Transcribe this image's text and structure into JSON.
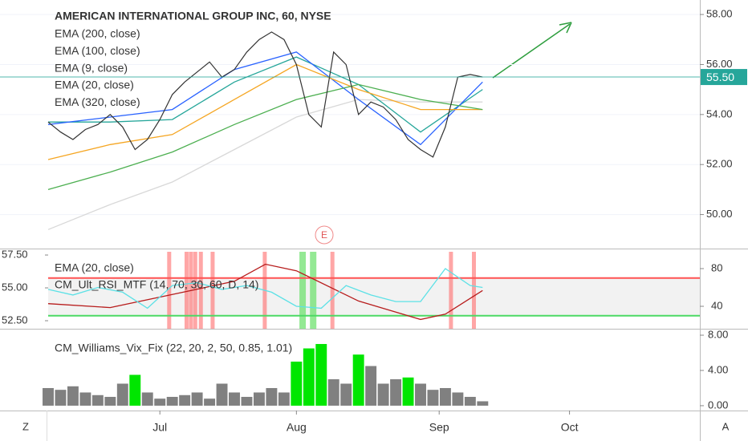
{
  "chart_data": [
    {
      "type": "line",
      "title": "AMERICAN INTERNATIONAL GROUP INC, 60, NYSE",
      "xlim": [
        0,
        105
      ],
      "ylim": [
        48.64,
        58.58
      ],
      "yticks": [
        {
          "value": 50,
          "label": "50.00"
        },
        {
          "value": 52,
          "label": "52.00"
        },
        {
          "value": 54,
          "label": "54.00"
        },
        {
          "value": 56,
          "label": "56.00"
        },
        {
          "value": 58,
          "label": "58.00"
        }
      ],
      "grid": true,
      "x": [
        0,
        2,
        4,
        6,
        8,
        10,
        12,
        14,
        16,
        18,
        20,
        22,
        24,
        26,
        28,
        30,
        32,
        34,
        36,
        38,
        40,
        42,
        44,
        46,
        48,
        50,
        52,
        54,
        56,
        58,
        60,
        62,
        64,
        66,
        68,
        70
      ],
      "values": [
        53.7,
        53.3,
        53.0,
        53.4,
        53.6,
        54.0,
        53.5,
        52.6,
        53.0,
        53.8,
        54.8,
        55.3,
        55.7,
        56.1,
        55.5,
        55.8,
        56.5,
        57.0,
        57.3,
        57.0,
        56.0,
        54.0,
        53.5,
        56.5,
        56.0,
        54.0,
        54.5,
        54.3,
        53.8,
        53.0,
        52.6,
        52.3,
        53.5,
        55.5,
        55.6,
        55.5
      ],
      "color": "#333333",
      "last_price": {
        "value": 55.5,
        "label": "55.50",
        "color": "#26a69a"
      },
      "series": [
        {
          "name": "EMA (200, close)",
          "color": "#4caf50",
          "x": [
            0,
            10,
            20,
            30,
            40,
            50,
            60,
            70
          ],
          "values": [
            51.0,
            51.7,
            52.5,
            53.6,
            54.6,
            55.2,
            54.6,
            54.2
          ]
        },
        {
          "name": "EMA (100, close)",
          "color": "#f5a623",
          "x": [
            0,
            10,
            20,
            30,
            40,
            50,
            60,
            70
          ],
          "values": [
            52.2,
            52.8,
            53.2,
            54.6,
            56.0,
            55.0,
            54.2,
            54.2
          ]
        },
        {
          "name": "EMA (9, close)",
          "color": "#2962ff",
          "x": [
            0,
            10,
            20,
            30,
            40,
            50,
            60,
            70
          ],
          "values": [
            53.6,
            53.9,
            54.2,
            55.8,
            56.5,
            54.6,
            52.8,
            55.3
          ]
        },
        {
          "name": "EMA (20, close)",
          "color": "#26a69a",
          "x": [
            0,
            10,
            20,
            30,
            40,
            50,
            60,
            70
          ],
          "values": [
            53.7,
            53.7,
            53.8,
            55.3,
            56.3,
            55.2,
            53.3,
            55.0
          ]
        },
        {
          "name": "EMA (320, close)",
          "color": "#d8d8d8",
          "x": [
            0,
            10,
            20,
            30,
            40,
            50,
            60,
            70
          ],
          "values": [
            49.4,
            50.4,
            51.3,
            52.6,
            53.9,
            54.6,
            54.5,
            54.5
          ]
        }
      ],
      "event_label": "E"
    },
    {
      "type": "line",
      "xlim": [
        0,
        105
      ],
      "ylim": [
        16.2,
        100.4
      ],
      "yticks": [
        40,
        80
      ],
      "y2lim": [
        51.89,
        57.93
      ],
      "y2ticks": [
        {
          "value": 52.5,
          "label": "52.50"
        },
        {
          "value": 55,
          "label": "55.00"
        },
        {
          "value": 57.5,
          "label": "57.50"
        }
      ],
      "upper": 70,
      "lower": 30,
      "upper_color": "#ff5252",
      "lower_color": "#4cd964",
      "series": [
        {
          "name": "EMA (20, close)",
          "color": "#b71c1c",
          "axis": "y2",
          "x": [
            0,
            10,
            20,
            30,
            35,
            40,
            50,
            60,
            64,
            70
          ],
          "values": [
            53.8,
            53.5,
            54.5,
            55.5,
            56.8,
            56.3,
            54.0,
            52.6,
            53.0,
            54.8
          ]
        },
        {
          "name": "CM_Ult_RSI_MTF (14, 70, 30, 60, D, 14)",
          "color": "#5ce1e6",
          "x": [
            0,
            4,
            8,
            12,
            16,
            20,
            24,
            28,
            32,
            36,
            40,
            44,
            48,
            52,
            56,
            60,
            64,
            68,
            70
          ],
          "values": [
            58,
            52,
            60,
            55,
            38,
            62,
            65,
            58,
            62,
            55,
            40,
            38,
            62,
            52,
            45,
            45,
            80,
            62,
            60
          ]
        }
      ],
      "red_marks": [
        19.5,
        22.3,
        23,
        23.7,
        24.6,
        26.5,
        34.9,
        45.8,
        64.9,
        68.6
      ],
      "green_marks": [
        41,
        42.7
      ],
      "red_color": "#ff6b6b",
      "green_color": "#66e066"
    },
    {
      "type": "bar",
      "title": "CM_Williams_Vix_Fix (22, 20, 2, 50, 0.85, 1.01)",
      "xlim": [
        0,
        105
      ],
      "ylim": [
        -0.55,
        8.64
      ],
      "yticks": [
        {
          "value": 0,
          "label": "0.00"
        },
        {
          "value": 4,
          "label": "4.00"
        },
        {
          "value": 8,
          "label": "8.00"
        }
      ],
      "xticks": [
        {
          "value": 18,
          "label": "Jul"
        },
        {
          "value": 40,
          "label": "Aug"
        },
        {
          "value": 63,
          "label": "Sep"
        },
        {
          "value": 84,
          "label": "Oct"
        }
      ],
      "x": [
        0,
        2,
        4,
        6,
        8,
        10,
        12,
        14,
        16,
        18,
        20,
        22,
        24,
        26,
        28,
        30,
        32,
        34,
        36,
        38,
        40,
        42,
        44,
        46,
        48,
        50,
        52,
        54,
        56,
        58,
        60,
        62,
        64,
        66,
        68,
        70
      ],
      "values": [
        2.0,
        1.8,
        2.2,
        1.5,
        1.2,
        1.0,
        2.5,
        3.5,
        1.5,
        0.8,
        1.0,
        1.2,
        1.5,
        0.8,
        2.5,
        1.5,
        1.0,
        1.5,
        2.0,
        1.5,
        5.0,
        6.5,
        7.0,
        3.0,
        2.5,
        5.8,
        4.5,
        2.5,
        3.0,
        3.2,
        2.5,
        1.8,
        2.0,
        1.5,
        1.0,
        0.5
      ],
      "colors": [
        "#808080",
        "#808080",
        "#808080",
        "#808080",
        "#808080",
        "#808080",
        "#808080",
        "#00e600",
        "#808080",
        "#808080",
        "#808080",
        "#808080",
        "#808080",
        "#808080",
        "#808080",
        "#808080",
        "#808080",
        "#808080",
        "#808080",
        "#808080",
        "#00e600",
        "#00e600",
        "#00e600",
        "#808080",
        "#808080",
        "#00e600",
        "#808080",
        "#808080",
        "#808080",
        "#00e600",
        "#808080",
        "#808080",
        "#808080",
        "#808080",
        "#808080",
        "#808080"
      ]
    }
  ],
  "buttons": {
    "left": "Z",
    "right": "A"
  }
}
